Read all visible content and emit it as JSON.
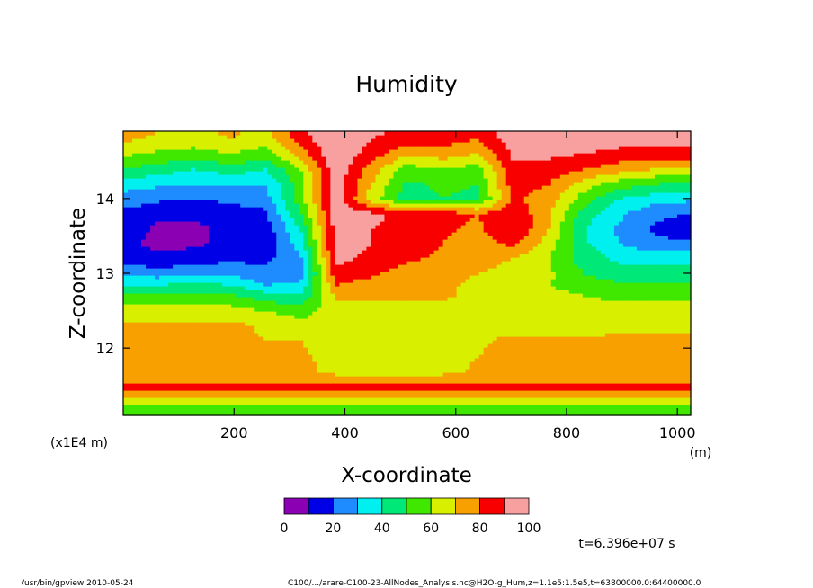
{
  "chart_data": {
    "type": "heatmap",
    "title": "Humidity",
    "xlabel": "X-coordinate",
    "ylabel": "Z-coordinate",
    "x_unit": "(m)",
    "y_scale_note": "(x1E4 m)",
    "xlim": [
      0,
      1024
    ],
    "ylim": [
      11.1,
      14.9
    ],
    "x_ticks": [
      200,
      400,
      600,
      800,
      1000
    ],
    "y_ticks": [
      12,
      13,
      14
    ],
    "levels": [
      0,
      10,
      20,
      30,
      40,
      50,
      60,
      70,
      80,
      90,
      100
    ],
    "colorbar_labels": [
      "0",
      "20",
      "40",
      "60",
      "80",
      "100"
    ],
    "colors": [
      "#8a00b2",
      "#0000e6",
      "#1e8cff",
      "#00f0f0",
      "#00e878",
      "#40e800",
      "#d8f000",
      "#f8a000",
      "#f80000",
      "#f8a0a0"
    ],
    "above_max_color": "#ffffff",
    "time_label": "t=6.396e+07 s",
    "footer_left": "/usr/bin/gpview  2010-05-24",
    "footer_right": "C100/.../arare-C100-23-AllNodes_Analysis.nc@H2O-g_Hum,z=1.1e5:1.5e5,t=63800000.0:64400000.0",
    "x": [
      0,
      64,
      128,
      192,
      256,
      320,
      384,
      448,
      512,
      576,
      640,
      704,
      768,
      832,
      896,
      960,
      1024
    ],
    "z": [
      11.1,
      11.3,
      11.45,
      11.55,
      11.7,
      11.9,
      12.1,
      12.3,
      12.5,
      12.7,
      12.85,
      13.0,
      13.2,
      13.4,
      13.6,
      13.8,
      14.0,
      14.2,
      14.4,
      14.6,
      14.8,
      14.9
    ],
    "values": [
      [
        55,
        55,
        55,
        55,
        55,
        55,
        55,
        55,
        55,
        55,
        55,
        55,
        55,
        55,
        55,
        55,
        55
      ],
      [
        62,
        62,
        62,
        62,
        62,
        62,
        62,
        62,
        62,
        62,
        62,
        62,
        62,
        62,
        62,
        62,
        62
      ],
      [
        85,
        85,
        85,
        85,
        85,
        85,
        85,
        85,
        85,
        85,
        85,
        85,
        85,
        85,
        85,
        85,
        85
      ],
      [
        78,
        78,
        78,
        78,
        78,
        78,
        78,
        78,
        78,
        78,
        78,
        78,
        78,
        78,
        78,
        78,
        78
      ],
      [
        72,
        72,
        72,
        72,
        72,
        74,
        66,
        66,
        66,
        66,
        72,
        75,
        75,
        75,
        75,
        75,
        75
      ],
      [
        72,
        72,
        72,
        72,
        72,
        72,
        65,
        65,
        65,
        65,
        70,
        74,
        74,
        72,
        74,
        74,
        74
      ],
      [
        73,
        73,
        73,
        73,
        70,
        70,
        62,
        64,
        65,
        65,
        68,
        73,
        72,
        72,
        74,
        74,
        74
      ],
      [
        72,
        72,
        72,
        73,
        68,
        66,
        62,
        64,
        65,
        65,
        66,
        65,
        65,
        65,
        66,
        66,
        66
      ],
      [
        66,
        66,
        66,
        64,
        60,
        55,
        66,
        66,
        66,
        65,
        66,
        64,
        64,
        64,
        64,
        64,
        64
      ],
      [
        52,
        54,
        54,
        52,
        45,
        42,
        72,
        72,
        72,
        72,
        66,
        66,
        64,
        60,
        58,
        58,
        58
      ],
      [
        40,
        40,
        42,
        40,
        30,
        32,
        80,
        75,
        75,
        72,
        68,
        66,
        60,
        55,
        52,
        52,
        52
      ],
      [
        28,
        25,
        28,
        28,
        22,
        25,
        88,
        82,
        75,
        72,
        70,
        68,
        62,
        50,
        45,
        45,
        45
      ],
      [
        15,
        12,
        15,
        18,
        18,
        28,
        92,
        88,
        82,
        78,
        72,
        70,
        60,
        45,
        38,
        38,
        38
      ],
      [
        12,
        8,
        8,
        14,
        12,
        35,
        95,
        90,
        86,
        80,
        75,
        82,
        65,
        42,
        30,
        22,
        22
      ],
      [
        15,
        8,
        8,
        12,
        14,
        40,
        95,
        90,
        86,
        82,
        78,
        90,
        70,
        40,
        28,
        18,
        15
      ],
      [
        18,
        12,
        12,
        15,
        18,
        50,
        95,
        92,
        88,
        85,
        80,
        88,
        72,
        45,
        32,
        22,
        20
      ],
      [
        25,
        22,
        20,
        22,
        25,
        55,
        96,
        65,
        45,
        50,
        48,
        82,
        75,
        55,
        40,
        35,
        32
      ],
      [
        35,
        32,
        30,
        32,
        30,
        55,
        96,
        70,
        48,
        52,
        50,
        85,
        80,
        65,
        55,
        50,
        48
      ],
      [
        50,
        45,
        40,
        45,
        40,
        60,
        98,
        75,
        55,
        60,
        55,
        88,
        86,
        80,
        75,
        70,
        70
      ],
      [
        62,
        58,
        55,
        60,
        55,
        75,
        99,
        85,
        72,
        75,
        70,
        92,
        92,
        90,
        86,
        85,
        85
      ],
      [
        72,
        68,
        66,
        70,
        65,
        85,
        100,
        90,
        85,
        85,
        80,
        96,
        96,
        96,
        95,
        95,
        95
      ],
      [
        75,
        70,
        68,
        72,
        68,
        88,
        100,
        92,
        88,
        88,
        82,
        97,
        97,
        97,
        96,
        96,
        96
      ]
    ]
  }
}
